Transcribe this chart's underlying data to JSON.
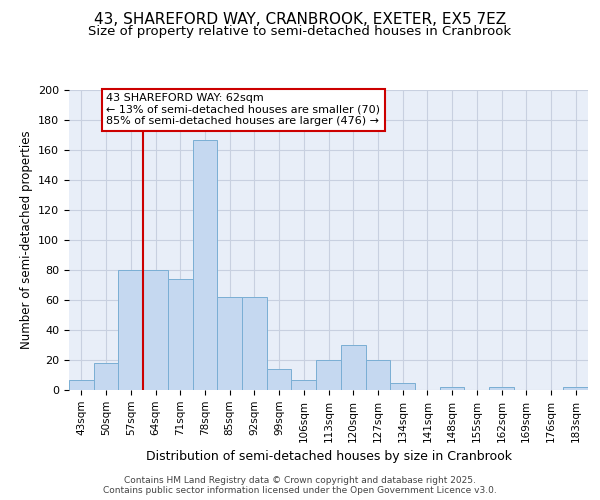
{
  "title_line1": "43, SHAREFORD WAY, CRANBROOK, EXETER, EX5 7EZ",
  "title_line2": "Size of property relative to semi-detached houses in Cranbrook",
  "xlabel": "Distribution of semi-detached houses by size in Cranbrook",
  "ylabel": "Number of semi-detached properties",
  "categories": [
    "43sqm",
    "50sqm",
    "57sqm",
    "64sqm",
    "71sqm",
    "78sqm",
    "85sqm",
    "92sqm",
    "99sqm",
    "106sqm",
    "113sqm",
    "120sqm",
    "127sqm",
    "134sqm",
    "141sqm",
    "148sqm",
    "155sqm",
    "162sqm",
    "169sqm",
    "176sqm",
    "183sqm"
  ],
  "values": [
    7,
    18,
    80,
    80,
    74,
    167,
    62,
    62,
    14,
    7,
    20,
    30,
    20,
    5,
    0,
    2,
    0,
    2,
    0,
    0,
    2
  ],
  "bar_color": "#c5d8f0",
  "bar_edge_color": "#7aaed4",
  "highlight_color": "#cc0000",
  "annotation_line1": "43 SHAREFORD WAY: 62sqm",
  "annotation_line2": "← 13% of semi-detached houses are smaller (70)",
  "annotation_line3": "85% of semi-detached houses are larger (476) →",
  "annotation_box_color": "#ffffff",
  "annotation_box_edge": "#cc0000",
  "vline_x": 2.5,
  "ylim": [
    0,
    200
  ],
  "yticks": [
    0,
    20,
    40,
    60,
    80,
    100,
    120,
    140,
    160,
    180,
    200
  ],
  "background_color": "#e8eef8",
  "grid_color": "#c8d0e0",
  "footer_text": "Contains HM Land Registry data © Crown copyright and database right 2025.\nContains public sector information licensed under the Open Government Licence v3.0.",
  "title_fontsize": 11,
  "subtitle_fontsize": 9.5,
  "tick_fontsize": 7.5,
  "ylabel_fontsize": 8.5,
  "xlabel_fontsize": 9,
  "annot_fontsize": 8
}
